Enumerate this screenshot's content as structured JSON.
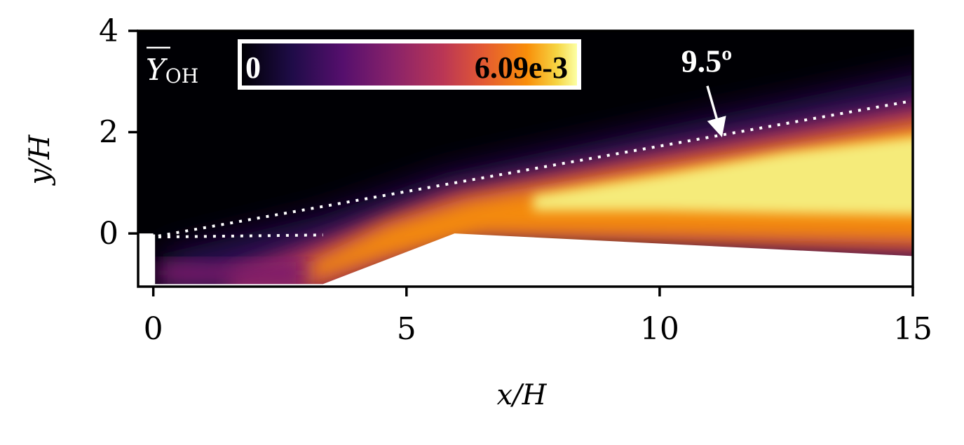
{
  "chart_data": {
    "type": "heatmap",
    "title": "",
    "xlabel": "x/H",
    "ylabel": "y/H",
    "xlim": [
      -0.3,
      15
    ],
    "ylim": [
      -1.05,
      4
    ],
    "xticks": [
      {
        "value": 0,
        "label": "0"
      },
      {
        "value": 5,
        "label": "5"
      },
      {
        "value": 10,
        "label": "10"
      },
      {
        "value": 15,
        "label": "15"
      }
    ],
    "yticks": [
      {
        "value": 0,
        "label": "0"
      },
      {
        "value": 2,
        "label": "2"
      },
      {
        "value": 4,
        "label": "4"
      }
    ],
    "grid": false,
    "colormap": "inferno",
    "colorbar": {
      "quantity": "Y_OH (mean)",
      "label_main": "Y",
      "label_sub": "OH",
      "min": 0,
      "min_label": "0",
      "max": 0.00609,
      "max_label": "6.09e-3",
      "placement": "top-left, inside plot"
    },
    "geometry": {
      "inlet_x": 0,
      "floor_y": -1,
      "ramp_start": [
        3.35,
        -1
      ],
      "ramp_end": [
        5.95,
        0
      ],
      "outlet_bottom_y": -0.45
    },
    "spread_line": {
      "x": [
        0.1,
        15
      ],
      "y": [
        -0.05,
        2.62
      ],
      "style": "dotted",
      "color": "#ffffff"
    },
    "shear_line": {
      "x": [
        0.1,
        3.35
      ],
      "y": [
        -0.07,
        -0.03
      ],
      "style": "dotted",
      "color": "#ffffff"
    },
    "annotation": {
      "text": "9.5º",
      "text_x": 11.15,
      "text_y": 3.3,
      "arrow_to_x": 11.15,
      "arrow_to_y": 2.02
    }
  }
}
